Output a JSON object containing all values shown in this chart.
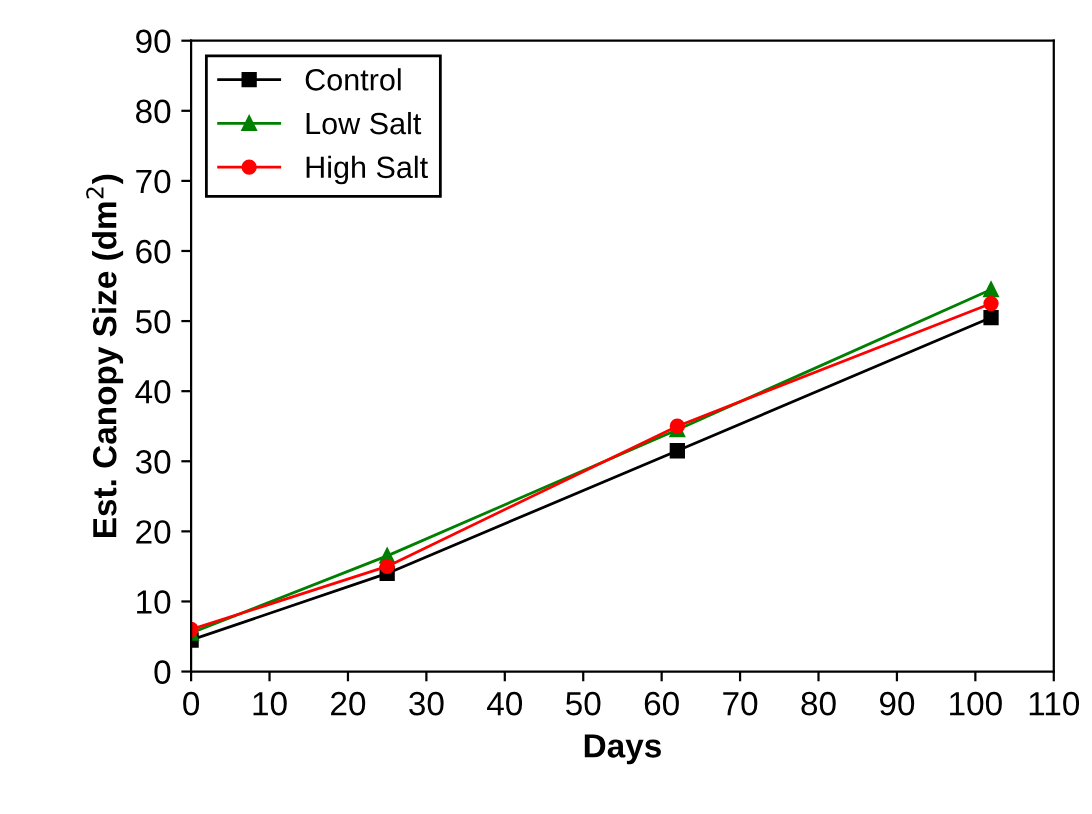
{
  "chart_data": {
    "type": "line",
    "xlabel": "Days",
    "ylabel": "Est. Canopy Size (dm$^{2}$)",
    "x": [
      0,
      25,
      62,
      102
    ],
    "series": [
      {
        "name": "Control",
        "color": "#000000",
        "marker": "square",
        "values": [
          4.5,
          14,
          31.5,
          50.5
        ]
      },
      {
        "name": "Low Salt",
        "color": "#008000",
        "marker": "triangle",
        "values": [
          5.5,
          16.5,
          34.5,
          54.5
        ]
      },
      {
        "name": "High Salt",
        "color": "#ff0000",
        "marker": "circle",
        "values": [
          6,
          15,
          35,
          52.5
        ]
      }
    ],
    "xlim": [
      0,
      110
    ],
    "xticks": [
      0,
      10,
      20,
      30,
      40,
      50,
      60,
      70,
      80,
      90,
      100,
      110
    ],
    "ylim": [
      0,
      90
    ],
    "yticks": [
      0,
      10,
      20,
      30,
      40,
      50,
      60,
      70,
      80,
      90
    ],
    "grid": false,
    "legend": "top left",
    "line_style": "solid"
  }
}
